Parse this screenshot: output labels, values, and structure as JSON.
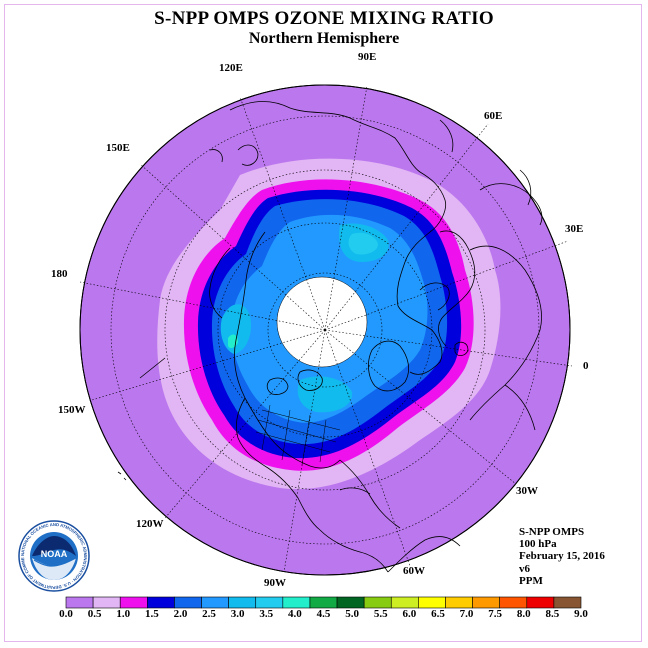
{
  "title": "S-NPP OMPS OZONE MIXING RATIO",
  "subtitle": "Northern Hemisphere",
  "longitude_labels": {
    "lon_90e": "90E",
    "lon_60e": "60E",
    "lon_30e": "30E",
    "lon_0": "0",
    "lon_30w": "30W",
    "lon_60w": "60W",
    "lon_90w": "90W",
    "lon_120w": "120W",
    "lon_150w": "150W",
    "lon_180": "180",
    "lon_150e": "150E",
    "lon_120e": "120E"
  },
  "info": {
    "instrument": "S-NPP OMPS",
    "level": "100 hPa",
    "date": "February 15, 2016",
    "version": "v6",
    "units": "PPM"
  },
  "logo": {
    "text": "NOAA",
    "ring_text": "NATIONAL OCEANIC AND ATMOSPHERIC ADMINISTRATION · U.S. DEPARTMENT OF COMMERCE"
  },
  "colorbar": {
    "ticks": [
      "0.0",
      "0.5",
      "1.0",
      "1.5",
      "2.0",
      "2.5",
      "3.0",
      "3.5",
      "4.0",
      "4.5",
      "5.0",
      "5.5",
      "6.0",
      "6.5",
      "7.0",
      "7.5",
      "8.0",
      "8.5",
      "9.0"
    ],
    "colors": [
      "#bb77ee",
      "#e2b5f4",
      "#ee11ee",
      "#0000dd",
      "#1166ee",
      "#2299ff",
      "#11bbee",
      "#22ccee",
      "#22eecc",
      "#11aa44",
      "#006622",
      "#88cc11",
      "#ccee22",
      "#ffff00",
      "#ffcc00",
      "#ff9900",
      "#ff5500",
      "#ee0000",
      "#885533"
    ]
  },
  "colors": {
    "background_field": "#bb77ee",
    "no_data": "#ffffff"
  }
}
